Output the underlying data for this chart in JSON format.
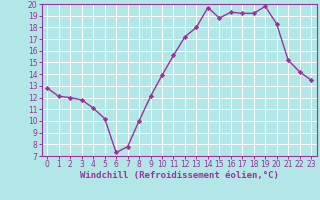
{
  "x": [
    0,
    1,
    2,
    3,
    4,
    5,
    6,
    7,
    8,
    9,
    10,
    11,
    12,
    13,
    14,
    15,
    16,
    17,
    18,
    19,
    20,
    21,
    22,
    23
  ],
  "y": [
    12.8,
    12.1,
    12.0,
    11.8,
    11.1,
    10.2,
    7.3,
    7.8,
    10.0,
    12.1,
    13.9,
    15.6,
    17.2,
    18.0,
    19.7,
    18.8,
    19.3,
    19.2,
    19.2,
    19.8,
    18.3,
    15.2,
    14.2,
    13.5
  ],
  "line_color": "#993399",
  "marker": "D",
  "marker_size": 2.2,
  "bg_color": "#b3e6e6",
  "grid_color": "#ffffff",
  "xlabel": "Windchill (Refroidissement éolien,°C)",
  "xlabel_color": "#993399",
  "tick_color": "#993399",
  "xlim": [
    -0.5,
    23.5
  ],
  "ylim": [
    7,
    20
  ],
  "yticks": [
    7,
    8,
    9,
    10,
    11,
    12,
    13,
    14,
    15,
    16,
    17,
    18,
    19,
    20
  ],
  "xticks": [
    0,
    1,
    2,
    3,
    4,
    5,
    6,
    7,
    8,
    9,
    10,
    11,
    12,
    13,
    14,
    15,
    16,
    17,
    18,
    19,
    20,
    21,
    22,
    23
  ],
  "spine_color": "#993399",
  "linewidth": 1.0,
  "tick_fontsize": 5.5,
  "xlabel_fontsize": 6.5
}
